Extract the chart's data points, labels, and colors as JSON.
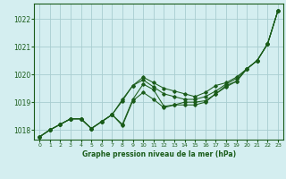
{
  "title": "Graphe pression niveau de la mer (hPa)",
  "background_color": "#d4eef0",
  "grid_color": "#a8cdd0",
  "line_color": "#1a5c1a",
  "marker_color": "#1a5c1a",
  "xlim": [
    -0.5,
    23.5
  ],
  "ylim": [
    1017.65,
    1022.55
  ],
  "yticks": [
    1018,
    1019,
    1020,
    1021,
    1022
  ],
  "xticks": [
    0,
    1,
    2,
    3,
    4,
    5,
    6,
    7,
    8,
    9,
    10,
    11,
    12,
    13,
    14,
    15,
    16,
    17,
    18,
    19,
    20,
    21,
    22,
    23
  ],
  "series": [
    [
      1017.75,
      1018.0,
      1018.2,
      1018.4,
      1018.4,
      1018.05,
      1018.3,
      1018.55,
      1018.2,
      1019.1,
      1019.65,
      1019.45,
      1018.85,
      1018.9,
      1019.0,
      1019.0,
      1019.05,
      1019.3,
      1019.6,
      1019.75,
      1020.2,
      1020.5,
      1021.1,
      1022.3
    ],
    [
      1017.75,
      1018.0,
      1018.2,
      1018.4,
      1018.4,
      1018.05,
      1018.3,
      1018.55,
      1018.15,
      1019.05,
      1019.35,
      1019.1,
      1018.8,
      1018.9,
      1018.9,
      1018.9,
      1019.0,
      1019.3,
      1019.55,
      1019.75,
      1020.2,
      1020.5,
      1021.1,
      1022.3
    ],
    [
      1017.75,
      1018.0,
      1018.2,
      1018.4,
      1018.4,
      1018.05,
      1018.3,
      1018.55,
      1019.05,
      1019.6,
      1019.8,
      1019.55,
      1019.3,
      1019.2,
      1019.1,
      1019.1,
      1019.2,
      1019.4,
      1019.65,
      1019.85,
      1020.2,
      1020.5,
      1021.1,
      1022.3
    ],
    [
      1017.75,
      1018.0,
      1018.2,
      1018.4,
      1018.4,
      1018.05,
      1018.3,
      1018.55,
      1019.1,
      1019.6,
      1019.9,
      1019.7,
      1019.5,
      1019.4,
      1019.3,
      1019.2,
      1019.35,
      1019.6,
      1019.7,
      1019.9,
      1020.2,
      1020.5,
      1021.1,
      1022.3
    ]
  ]
}
